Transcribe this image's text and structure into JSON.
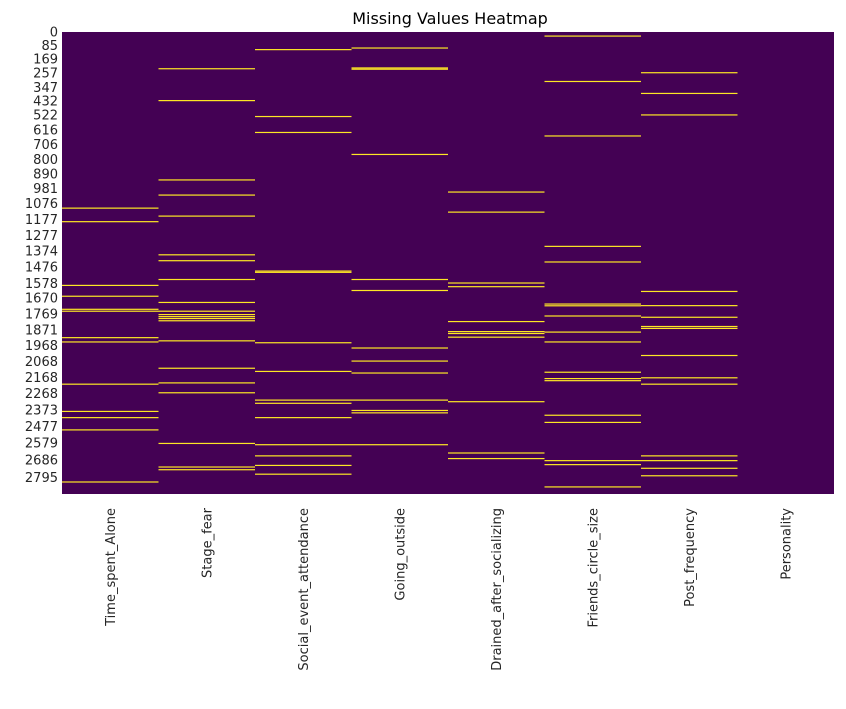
{
  "chart_data": {
    "type": "heatmap",
    "title": "Missing Values Heatmap",
    "xlabel": "",
    "ylabel": "",
    "n_rows": 2900,
    "colors": {
      "present": "#440154",
      "missing": "#fde725"
    },
    "colorbar": false,
    "columns": [
      "Time_spent_Alone",
      "Stage_fear",
      "Social_event_attendance",
      "Going_outside",
      "Drained_after_socializing",
      "Friends_circle_size",
      "Post_frequency",
      "Personality"
    ],
    "y_tick_labels": [
      "0",
      "85",
      "169",
      "257",
      "347",
      "432",
      "522",
      "616",
      "706",
      "800",
      "890",
      "981",
      "1076",
      "1177",
      "1277",
      "1374",
      "1476",
      "1578",
      "1670",
      "1769",
      "1871",
      "1968",
      "2068",
      "2168",
      "2268",
      "2373",
      "2477",
      "2579",
      "2686",
      "2795"
    ],
    "y_tick_positions": [
      0,
      85,
      169,
      257,
      347,
      432,
      522,
      616,
      706,
      800,
      890,
      981,
      1076,
      1177,
      1277,
      1374,
      1476,
      1578,
      1670,
      1769,
      1871,
      1968,
      2068,
      2168,
      2268,
      2373,
      2477,
      2579,
      2686,
      2795
    ],
    "missing_rows": {
      "Time_spent_Alone": [
        1105,
        1190,
        1590,
        1658,
        1740,
        1752,
        1918,
        1945,
        2210,
        2381,
        2420,
        2497,
        2824
      ],
      "Stage_fear": [
        230,
        430,
        928,
        1023,
        1155,
        1398,
        1435,
        1553,
        1697,
        1752,
        1773,
        1786,
        1798,
        1812,
        1938,
        2110,
        2202,
        2264,
        2582,
        2730,
        2747
      ],
      "Social_event_attendance": [
        110,
        530,
        630,
        1500,
        1508,
        1950,
        2130,
        2310,
        2330,
        2420,
        2590,
        2660,
        2720,
        2775
      ],
      "Going_outside": [
        100,
        225,
        233,
        768,
        1553,
        1622,
        1983,
        2065,
        2140,
        2310,
        2375,
        2390,
        2590
      ],
      "Drained_after_socializing": [
        1004,
        1130,
        1575,
        1598,
        1817,
        1880,
        1892,
        1915,
        2320,
        2642,
        2677
      ],
      "Friends_circle_size": [
        25,
        310,
        652,
        1345,
        1443,
        1707,
        1718,
        1782,
        1883,
        1945,
        2135,
        2175,
        2188,
        2405,
        2450,
        2690,
        2715,
        2855
      ],
      "Post_frequency": [
        255,
        385,
        520,
        1628,
        1717,
        1790,
        1848,
        1860,
        2030,
        2170,
        2210,
        2660,
        2690,
        2738,
        2785
      ],
      "Personality": []
    }
  }
}
